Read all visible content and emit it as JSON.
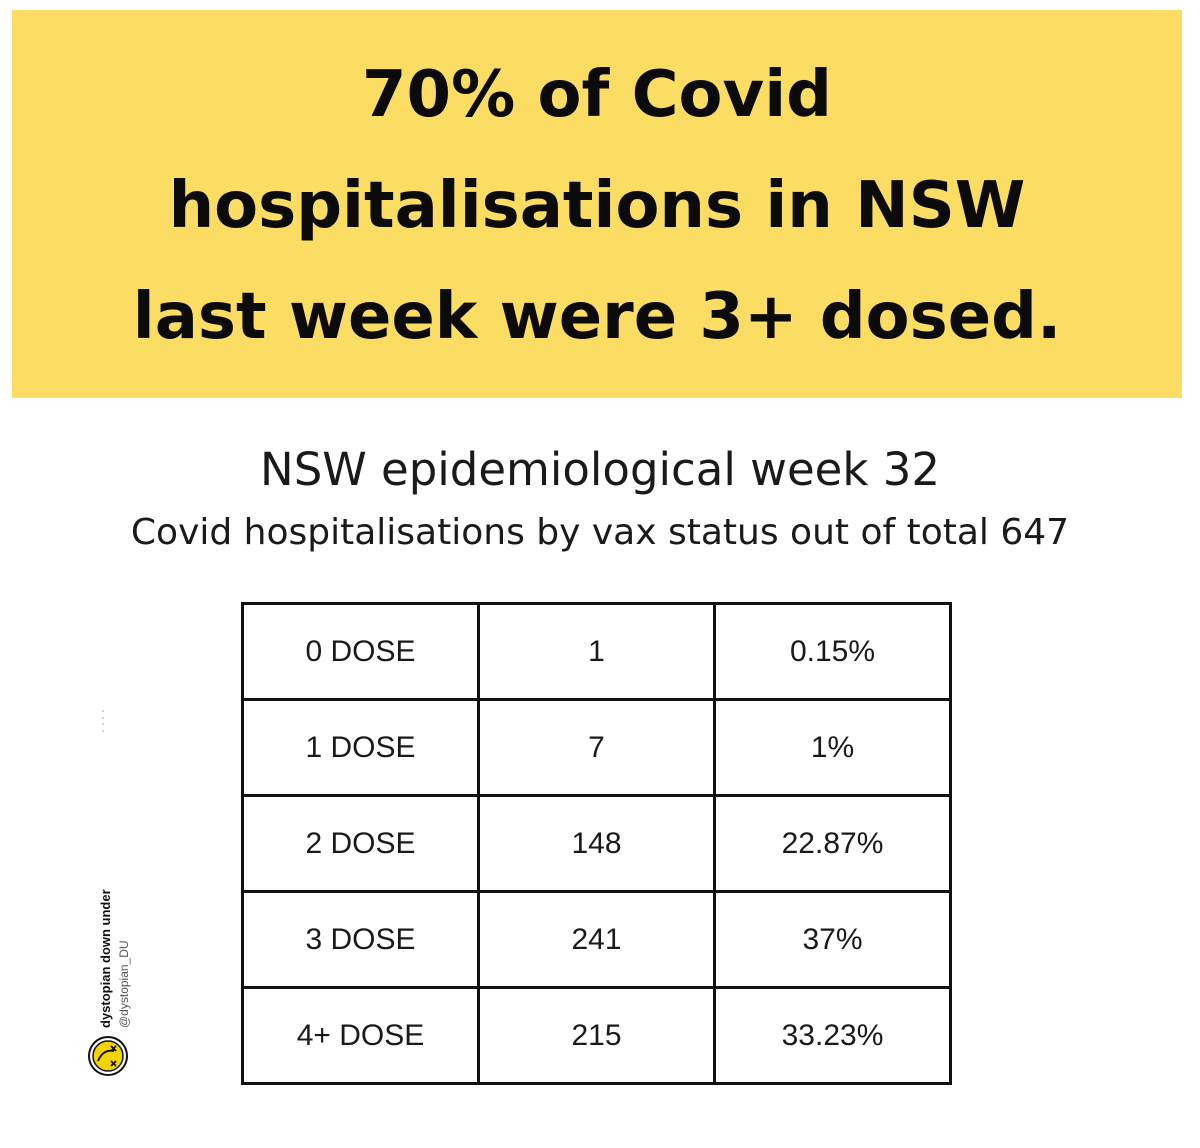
{
  "banner": {
    "headline_lines": [
      "70% of Covid",
      "hospitalisations in NSW",
      "last week were 3+ dosed."
    ],
    "background_color": "#fbdd63"
  },
  "chart_data": {
    "type": "table",
    "title": "NSW epidemiological week 32",
    "subtitle": "Covid hospitalisations by vax status out of total 647",
    "rows": [
      {
        "status": "0 DOSE",
        "count": "1",
        "percent": "0.15%"
      },
      {
        "status": "1 DOSE",
        "count": "7",
        "percent": "1%"
      },
      {
        "status": "2 DOSE",
        "count": "148",
        "percent": "22.87%"
      },
      {
        "status": "3 DOSE",
        "count": "241",
        "percent": "37%"
      },
      {
        "status": "4+ DOSE",
        "count": "215",
        "percent": "33.23%"
      }
    ]
  },
  "watermark": {
    "name": "dystopian down under",
    "handle": "@dystopian_DU",
    "logo_icon": "dizzy-face-logo-icon",
    "logo_color": "#f2d400"
  }
}
